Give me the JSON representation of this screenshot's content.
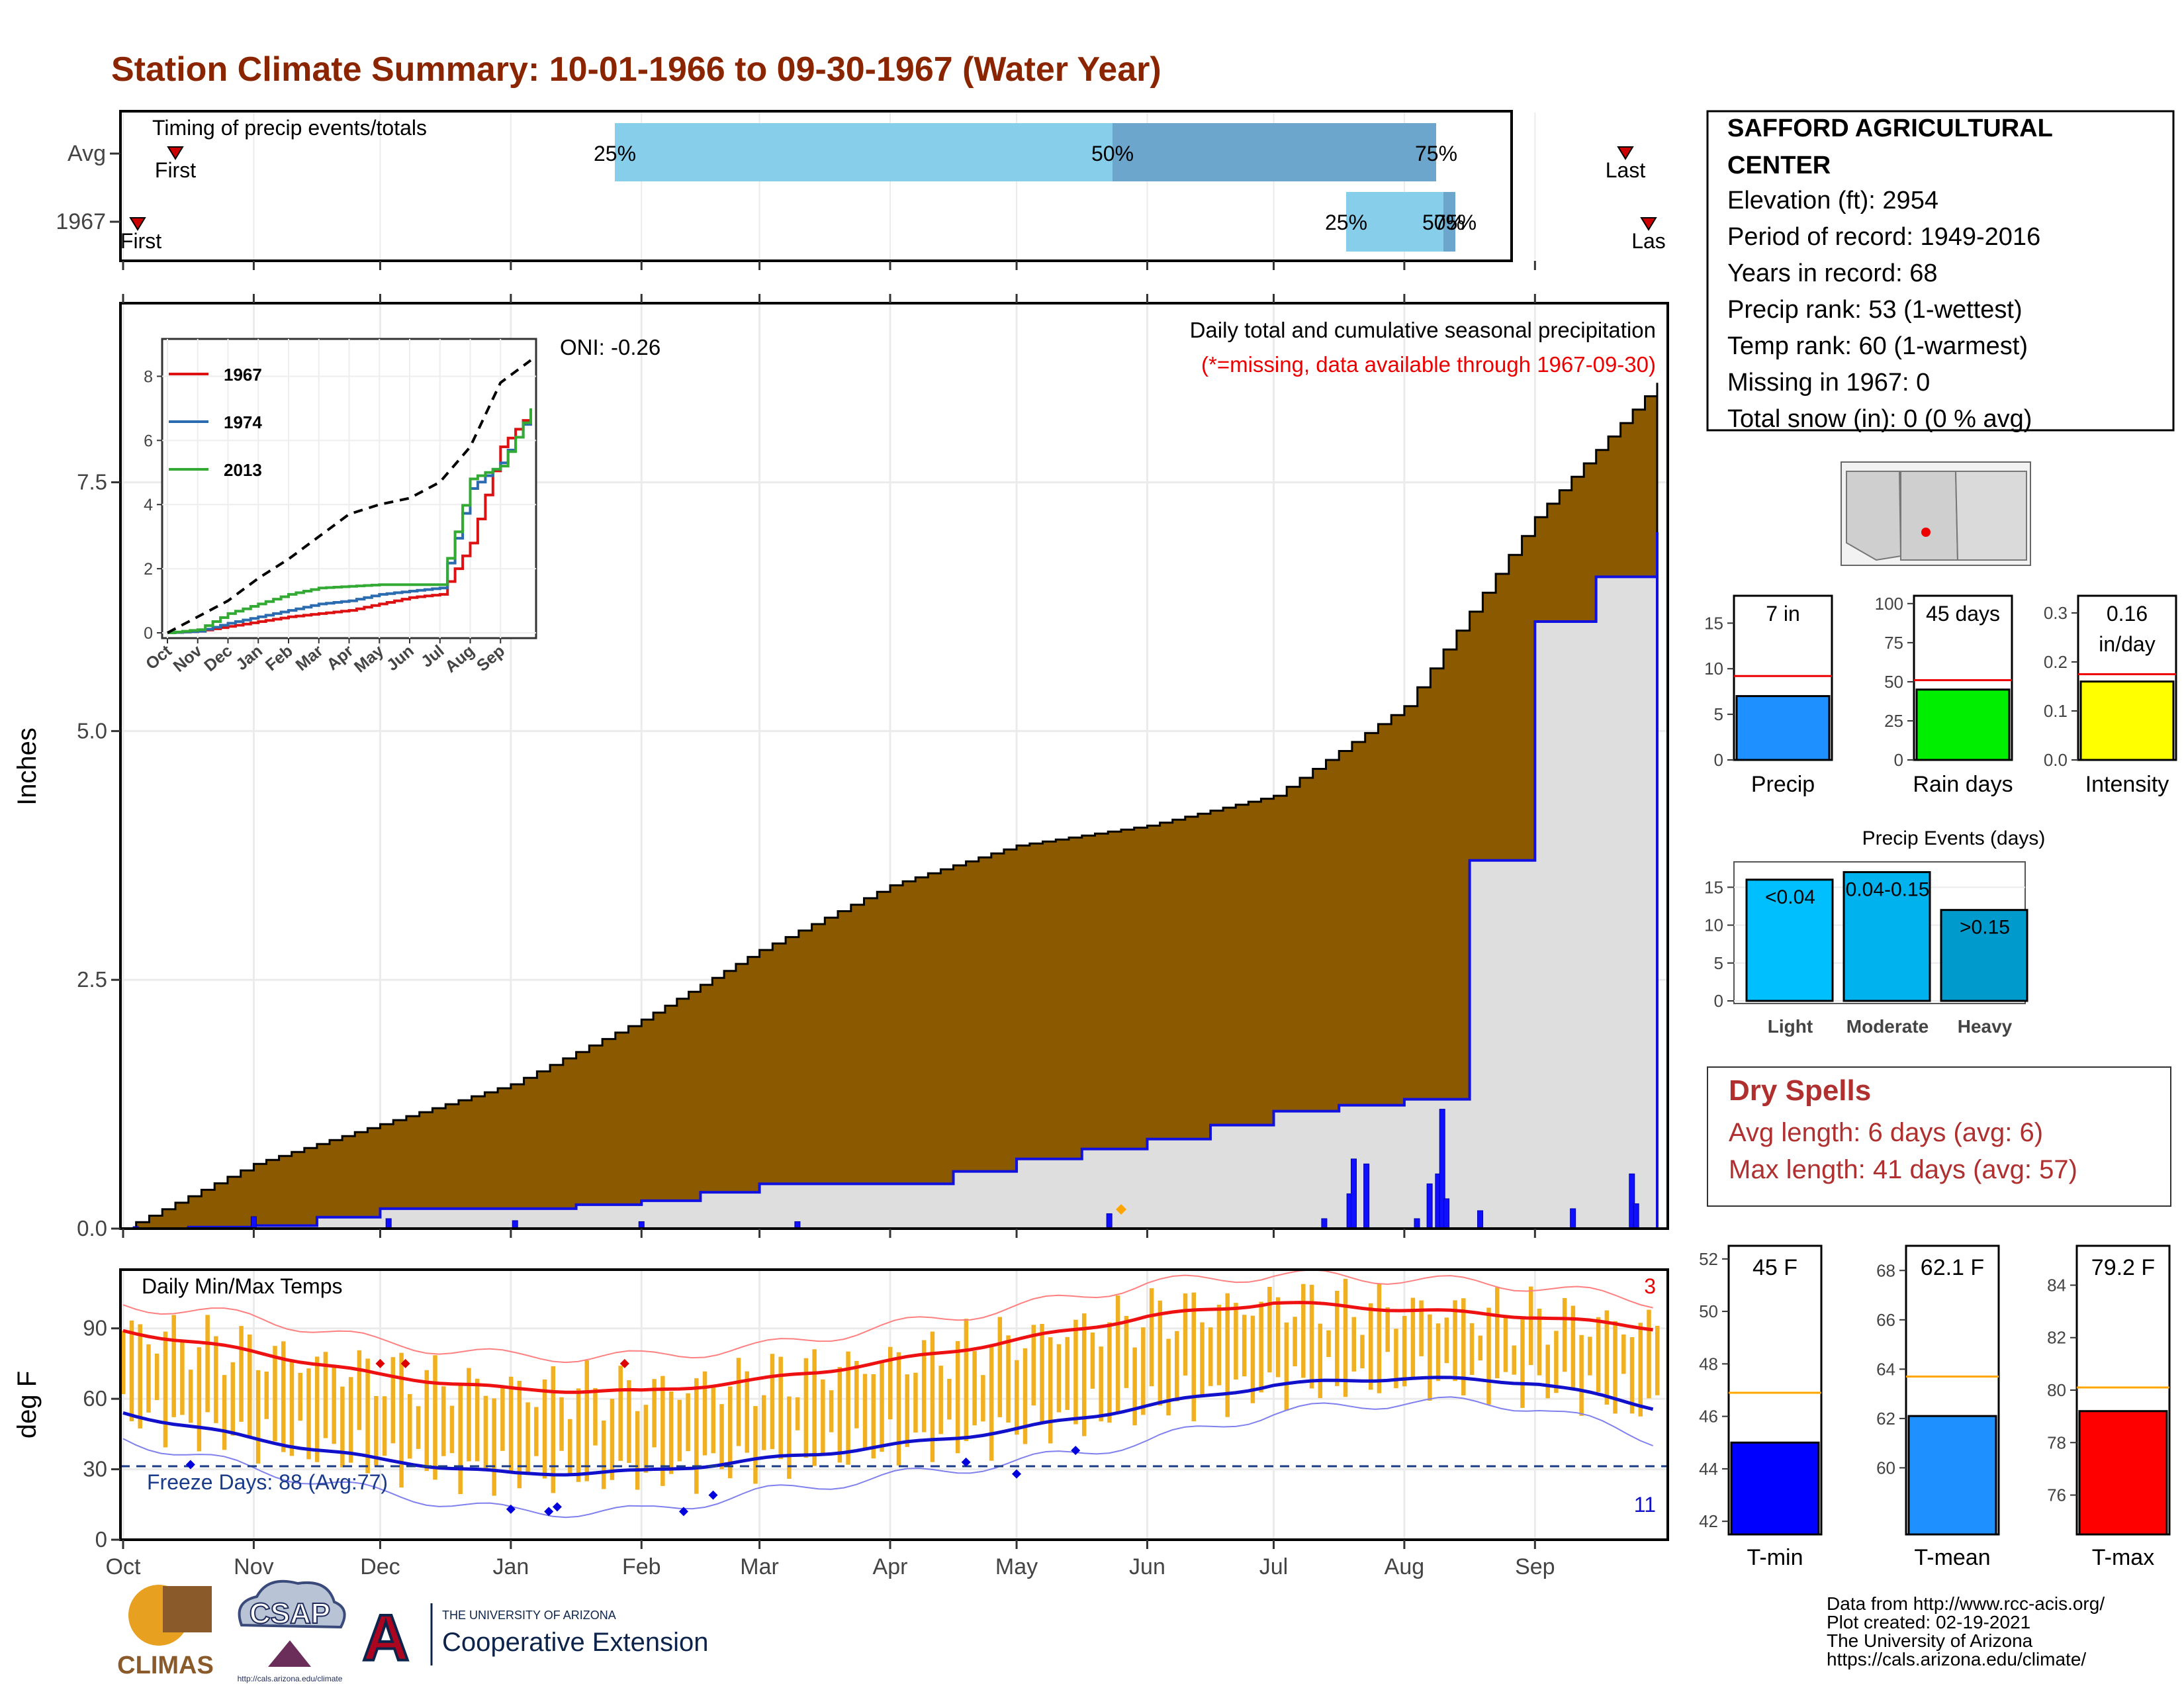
{
  "title": "Station Climate Summary: 10-01-1966 to 09-30-1967 (Water Year)",
  "colors": {
    "title": "#8b2500",
    "precip_fill": "#8b5a00",
    "normal_fill": "#dedede",
    "normal_line": "#1010e0",
    "timing_light": "#87ceeb",
    "timing_dark": "#6ca6cd",
    "temp_bar": "#f0b020",
    "tmax_line": "#ee1111",
    "tmin_line": "#1111cc",
    "marker": "#cc0000"
  },
  "month_labels": [
    "Oct",
    "Nov",
    "Dec",
    "Jan",
    "Feb",
    "Mar",
    "Apr",
    "May",
    "Jun",
    "Jul",
    "Aug",
    "Sep"
  ],
  "timing": {
    "title": "Timing of precip events/totals",
    "rows": [
      {
        "label": "Avg",
        "first": "First",
        "last": "Last",
        "p25": "25%",
        "p50": "50%",
        "p75": "75%"
      },
      {
        "label": "1967",
        "first": "First",
        "last": "Las",
        "p25": "25%",
        "p50": "50%",
        "p75": "75%"
      }
    ],
    "markers": {
      "avg": {
        "first": "Oct 14",
        "p25": "Jan 23",
        "p50": "May 24",
        "p75": "Aug 8",
        "last": "Sep 22"
      },
      "1967": {
        "first": "Oct 5",
        "p25": "Jul 18",
        "p50": "Aug 10",
        "p75": "Aug 11",
        "last": "Sep 28"
      }
    }
  },
  "precip_panel": {
    "ylabel": "Inches",
    "yticks": [
      "0.0",
      "2.5",
      "5.0",
      "7.5"
    ],
    "caption": "Daily total and cumulative seasonal precipitation",
    "missing_note": "(*=missing, data available through 1967-09-30)",
    "oni": "ONI: -0.26"
  },
  "inset": {
    "yticks": [
      "0",
      "2",
      "4",
      "6",
      "8"
    ],
    "xticks": [
      "Oct",
      "Nov",
      "Dec",
      "Jan",
      "Feb",
      "Mar",
      "Apr",
      "May",
      "Jun",
      "Jul",
      "Aug",
      "Sep"
    ],
    "legend": [
      {
        "name": "1967",
        "color": "#dd1111"
      },
      {
        "name": "1974",
        "color": "#2b6cb0"
      },
      {
        "name": "2013",
        "color": "#33aa33"
      }
    ]
  },
  "temp_panel": {
    "title": "Daily Min/Max Temps",
    "ylabel": "deg F",
    "yticks": [
      "0",
      "30",
      "60",
      "90"
    ],
    "freeze_label": "Freeze Days: 88 (Avg:77)",
    "record_high_count": "3",
    "record_low_count": "11"
  },
  "station": {
    "name_line1": "SAFFORD AGRICULTURAL",
    "name_line2": "CENTER",
    "lines": [
      "Elevation (ft): 2954",
      "Period of record: 1949-2016",
      "Years in record: 68",
      "Precip rank: 53 (1-wettest)",
      "Temp rank: 60 (1-warmest)",
      "Missing in 1967: 0",
      "Total snow (in): 0 (0 % avg)"
    ]
  },
  "mini_bars": [
    {
      "label": "Precip",
      "value_text": "7 in",
      "value_text2": "",
      "yticks": [
        "0",
        "5",
        "10",
        "15"
      ],
      "color": "#1e90ff"
    },
    {
      "label": "Rain days",
      "value_text": "45 days",
      "value_text2": "",
      "yticks": [
        "0",
        "25",
        "50",
        "75",
        "100"
      ],
      "color": "#00ee00"
    },
    {
      "label": "Intensity",
      "value_text": "0.16",
      "value_text2": "in/day",
      "yticks": [
        "0.0",
        "0.1",
        "0.2",
        "0.3"
      ],
      "color": "#ffff00"
    }
  ],
  "events": {
    "title": "Precip Events (days)",
    "yticks": [
      "0",
      "5",
      "10",
      "15"
    ],
    "categories": [
      "Light",
      "Moderate",
      "Heavy"
    ],
    "bar_labels": [
      "<0.04",
      "0.04-0.15",
      ">0.15"
    ]
  },
  "dry_spells": {
    "title": "Dry Spells",
    "avg": "Avg length: 6 days (avg: 6)",
    "max": "Max length: 41 days (avg: 57)"
  },
  "temp_bars": [
    {
      "label": "T-min",
      "value_text": "45 F",
      "yticks": [
        "42",
        "44",
        "46",
        "48",
        "50",
        "52"
      ],
      "color": "#0000ff"
    },
    {
      "label": "T-mean",
      "value_text": "62.1 F",
      "yticks": [
        "60",
        "62",
        "64",
        "66",
        "68"
      ],
      "color": "#1e90ff"
    },
    {
      "label": "T-max",
      "value_text": "79.2 F",
      "yticks": [
        "76",
        "78",
        "80",
        "82",
        "84"
      ],
      "color": "#ff0000"
    }
  ],
  "credits": [
    "Data from http://www.rcc-acis.org/",
    "Plot created: 02-19-2021",
    "The University of Arizona",
    "https://cals.arizona.edu/climate/"
  ],
  "logos": {
    "climas": "CLIMAS",
    "csap": "CSAP",
    "csap_url": "http://cals.arizona.edu/climate",
    "ua_small": "THE UNIVERSITY OF ARIZONA",
    "ua_big": "Cooperative Extension"
  },
  "chart_data": [
    {
      "type": "area",
      "title": "Daily total and cumulative seasonal precipitation",
      "ylabel": "Inches",
      "ylim": [
        0,
        9.3
      ],
      "x": [
        "Oct",
        "Nov",
        "Dec",
        "Jan",
        "Feb",
        "Mar",
        "Apr",
        "May",
        "Jun",
        "Jul",
        "Aug",
        "Sep",
        "Sep 30"
      ],
      "series": [
        {
          "values": [
            0.0,
            0.65,
            1.05,
            1.45,
            2.1,
            2.8,
            3.45,
            3.85,
            4.05,
            4.35,
            5.25,
            7.15,
            8.5
          ]
        },
        {
          "values": [
            0.0,
            0.03,
            0.2,
            0.2,
            0.28,
            0.45,
            0.45,
            0.7,
            0.9,
            1.18,
            1.3,
            6.1,
            7.0
          ]
        }
      ],
      "daily_bars": [
        {
          "date": "Oct 4",
          "value": 0.02
        },
        {
          "date": "Nov 1",
          "value": 0.12
        },
        {
          "date": "Dec 3",
          "value": 0.1
        },
        {
          "date": "Jan 2",
          "value": 0.08
        },
        {
          "date": "Feb 1",
          "value": 0.07
        },
        {
          "date": "Mar 10",
          "value": 0.07
        },
        {
          "date": "May 23",
          "value": 0.15
        },
        {
          "date": "Jul 13",
          "value": 0.1
        },
        {
          "date": "Jul 19",
          "value": 0.35
        },
        {
          "date": "Jul 20",
          "value": 0.7
        },
        {
          "date": "Jul 23",
          "value": 0.65
        },
        {
          "date": "Aug 4",
          "value": 0.1
        },
        {
          "date": "Aug 7",
          "value": 0.45
        },
        {
          "date": "Aug 9",
          "value": 0.55
        },
        {
          "date": "Aug 10",
          "value": 1.2
        },
        {
          "date": "Aug 11",
          "value": 0.3
        },
        {
          "date": "Aug 19",
          "value": 0.18
        },
        {
          "date": "Sep 10",
          "value": 0.2
        },
        {
          "date": "Sep 24",
          "value": 0.55
        },
        {
          "date": "Sep 25",
          "value": 0.25
        }
      ]
    },
    {
      "type": "line",
      "x": [
        "Oct",
        "Nov",
        "Dec",
        "Jan",
        "Feb",
        "Mar",
        "Apr",
        "May",
        "Jun",
        "Jul",
        "Aug",
        "Sep",
        "Sep 30"
      ],
      "ylim": [
        0,
        9
      ],
      "series": [
        {
          "name": "1967",
          "values": [
            0,
            0.05,
            0.2,
            0.35,
            0.5,
            0.6,
            0.7,
            0.9,
            1.1,
            1.2,
            2.8,
            5.8,
            6.9
          ]
        },
        {
          "name": "1974",
          "values": [
            0,
            0.05,
            0.3,
            0.5,
            0.7,
            0.9,
            1.0,
            1.2,
            1.3,
            1.4,
            4.5,
            5.3,
            6.9
          ]
        },
        {
          "name": "2013",
          "values": [
            0,
            0.1,
            0.6,
            0.9,
            1.2,
            1.4,
            1.45,
            1.5,
            1.5,
            1.5,
            4.8,
            5.2,
            7.0
          ]
        },
        {
          "values": [
            0,
            0.5,
            1.0,
            1.7,
            2.3,
            3.0,
            3.7,
            4.0,
            4.2,
            4.7,
            5.8,
            7.8,
            8.5
          ]
        }
      ]
    },
    {
      "type": "bar",
      "title": "Daily Min/Max Temps",
      "ylabel": "deg F",
      "ylim": [
        0,
        115
      ],
      "x": [
        "Oct",
        "Nov",
        "Dec",
        "Jan",
        "Feb",
        "Mar",
        "Apr",
        "May",
        "Jun",
        "Jul",
        "Aug",
        "Sep",
        "Sep 30"
      ],
      "series": [
        {
          "values": [
            89,
            80,
            70,
            64,
            63,
            68,
            76,
            85,
            95,
            101,
            98,
            95,
            90
          ]
        },
        {
          "values": [
            54,
            43,
            34,
            28,
            29,
            34,
            40,
            47,
            57,
            66,
            69,
            67,
            56
          ]
        },
        {
          "values": [
            100,
            95,
            84,
            78,
            78,
            82,
            91,
            99,
            109,
            113,
            111,
            108,
            101
          ]
        },
        {
          "values": [
            43,
            30,
            20,
            12,
            12,
            20,
            27,
            33,
            42,
            54,
            59,
            57,
            42
          ]
        }
      ],
      "freeze_threshold": 32
    },
    {
      "type": "bar",
      "categories": [
        "Precip"
      ],
      "values": [
        7.0
      ],
      "normal": 9.2,
      "ylim": [
        0,
        18
      ]
    },
    {
      "type": "bar",
      "categories": [
        "Rain days"
      ],
      "values": [
        45
      ],
      "normal": 51,
      "ylim": [
        0,
        105
      ]
    },
    {
      "type": "bar",
      "categories": [
        "Intensity"
      ],
      "values": [
        0.16
      ],
      "normal": 0.175,
      "ylim": [
        0,
        0.335
      ]
    },
    {
      "type": "bar",
      "title": "Precip Events (days)",
      "categories": [
        "Light",
        "Moderate",
        "Heavy"
      ],
      "values": [
        16,
        17,
        12
      ],
      "ylim": [
        0,
        18
      ]
    },
    {
      "type": "bar",
      "categories": [
        "T-min"
      ],
      "values": [
        45
      ],
      "normal": 46.9,
      "ylim": [
        41.5,
        52.5
      ]
    },
    {
      "type": "bar",
      "categories": [
        "T-mean"
      ],
      "values": [
        62.1
      ],
      "normal": 63.7,
      "ylim": [
        57.3,
        69.0
      ]
    },
    {
      "type": "bar",
      "categories": [
        "T-max"
      ],
      "values": [
        79.2
      ],
      "normal": 80.1,
      "ylim": [
        74.5,
        85.5
      ]
    }
  ]
}
